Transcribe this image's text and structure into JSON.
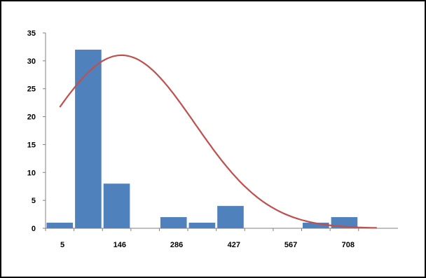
{
  "chart_data": {
    "type": "bar",
    "title": "",
    "xlabel": "",
    "ylabel": "",
    "x_tick_labels": [
      "5",
      "146",
      "286",
      "427",
      "567",
      "708"
    ],
    "y_tick_labels": [
      "0",
      "5",
      "10",
      "15",
      "20",
      "25",
      "30",
      "35"
    ],
    "ylim": [
      0,
      35
    ],
    "xlim": [
      5,
      872
    ],
    "grid": false,
    "legend": "none",
    "bins": [
      {
        "start": 5,
        "end": 75,
        "value": 1
      },
      {
        "start": 75,
        "end": 145,
        "value": 32
      },
      {
        "start": 145,
        "end": 215,
        "value": 8
      },
      {
        "start": 215,
        "end": 285,
        "value": 0
      },
      {
        "start": 285,
        "end": 355,
        "value": 2
      },
      {
        "start": 355,
        "end": 425,
        "value": 1
      },
      {
        "start": 425,
        "end": 495,
        "value": 4
      },
      {
        "start": 495,
        "end": 565,
        "value": 0
      },
      {
        "start": 565,
        "end": 635,
        "value": 0
      },
      {
        "start": 635,
        "end": 705,
        "value": 1
      },
      {
        "start": 705,
        "end": 775,
        "value": 2
      }
    ],
    "fit_curve": {
      "type": "normal",
      "peak": 31,
      "mean": 192,
      "std": 180,
      "x_from": 40,
      "x_to": 820
    },
    "colors": {
      "bars": "#4f81bd",
      "curve": "#c0504d",
      "axis": "#808080"
    }
  }
}
